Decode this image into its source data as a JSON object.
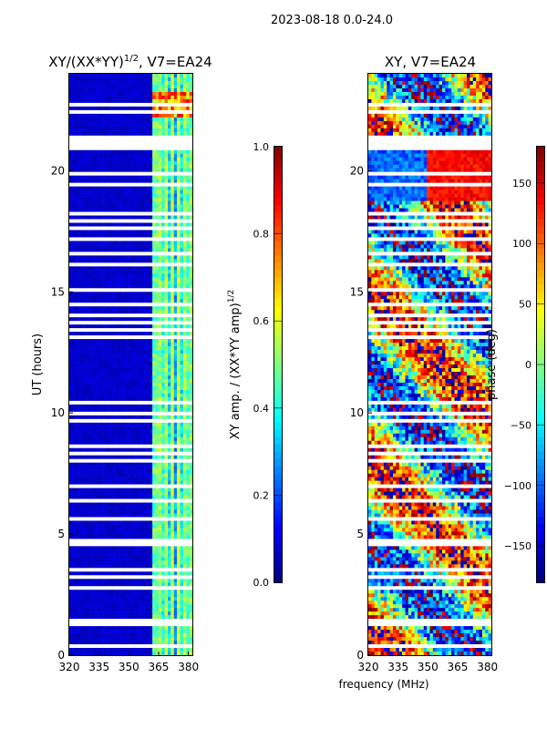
{
  "figure": {
    "suptitle": "2023-08-18 0.0-24.0",
    "xlabel": "frequency (MHz)"
  },
  "colors": {
    "jet": [
      "#00007f",
      "#0000ff",
      "#007fff",
      "#00ffff",
      "#7fff7f",
      "#ffff00",
      "#ff7f00",
      "#ff0000",
      "#7f0000"
    ],
    "gap": "#ffffff",
    "frame": "#000000"
  },
  "chart_data": [
    {
      "type": "heatmap",
      "panel": "amplitude",
      "title": "XY/(XX*YY)",
      "title_exp": "1/2",
      "title_suffix": ", V7=EA24",
      "ylabel": "UT (hours)",
      "xlim": [
        320,
        382
      ],
      "ylim": [
        0,
        24
      ],
      "xticks": [
        320,
        335,
        350,
        365,
        380
      ],
      "yticks": [
        0,
        5,
        10,
        15,
        20
      ],
      "colorbar": {
        "label": "XY amp. / (XX*YY amp)",
        "label_exp": "1/2",
        "range": [
          0.0,
          1.0
        ],
        "ticks": [
          "0.0",
          "0.2",
          "0.4",
          "0.6",
          "0.8",
          "1.0"
        ]
      },
      "description_values": {
        "background_value": 0.05,
        "active_band_MHz": [
          362,
          382
        ],
        "active_band_value_range": [
          0.2,
          0.65
        ],
        "peak_hours_range": [
          22.2,
          23.3
        ]
      }
    },
    {
      "type": "heatmap",
      "panel": "phase",
      "title": "XY, V7=EA24",
      "ylabel": "",
      "xlim": [
        320,
        382
      ],
      "ylim": [
        0,
        24
      ],
      "xticks": [
        320,
        335,
        350,
        365,
        380
      ],
      "yticks": [
        0,
        5,
        10,
        15,
        20
      ],
      "colorbar": {
        "label": "phase (deg)",
        "range": [
          -180,
          180
        ],
        "ticks": [
          "150",
          "100",
          "50",
          "0",
          "−50",
          "−100",
          "−150"
        ]
      },
      "description_values": {
        "value_range_deg": [
          -180,
          180
        ],
        "high_phase_block_hours": [
          18.8,
          20.9
        ],
        "high_phase_block_MHz": [
          350,
          382
        ]
      }
    }
  ],
  "gaps_hours": [
    [
      0.25,
      0.4
    ],
    [
      0.55,
      0.6
    ],
    [
      1.2,
      1.55
    ],
    [
      2.7,
      2.85
    ],
    [
      3.15,
      3.25
    ],
    [
      3.45,
      3.55
    ],
    [
      3.7,
      3.8
    ],
    [
      4.45,
      4.85
    ],
    [
      5.05,
      5.1
    ],
    [
      5.6,
      5.7
    ],
    [
      6.0,
      6.05
    ],
    [
      6.3,
      6.4
    ],
    [
      6.9,
      7.0
    ],
    [
      7.3,
      7.35
    ],
    [
      7.6,
      7.7
    ],
    [
      7.95,
      8.05
    ],
    [
      8.3,
      8.4
    ],
    [
      8.6,
      8.7
    ],
    [
      8.95,
      9.05
    ],
    [
      9.3,
      9.35
    ],
    [
      9.6,
      9.7
    ],
    [
      9.95,
      10.05
    ],
    [
      10.4,
      10.5
    ],
    [
      10.9,
      11.0
    ],
    [
      11.5,
      11.55
    ],
    [
      12.1,
      12.2
    ],
    [
      12.4,
      12.5
    ],
    [
      12.7,
      12.8
    ],
    [
      13.1,
      13.2
    ],
    [
      13.4,
      13.45
    ],
    [
      13.7,
      13.8
    ],
    [
      14.0,
      14.05
    ],
    [
      14.4,
      14.5
    ],
    [
      14.8,
      14.9
    ],
    [
      15.05,
      15.15
    ],
    [
      15.6,
      15.65
    ],
    [
      16.05,
      16.15
    ],
    [
      16.5,
      16.6
    ],
    [
      16.8,
      16.85
    ],
    [
      17.15,
      17.25
    ],
    [
      17.6,
      17.65
    ],
    [
      17.9,
      18.0
    ],
    [
      18.2,
      18.3
    ],
    [
      18.6,
      18.65
    ],
    [
      19.0,
      19.05
    ],
    [
      19.35,
      19.45
    ],
    [
      19.8,
      19.9
    ],
    [
      20.2,
      20.25
    ],
    [
      20.5,
      20.55
    ],
    [
      20.9,
      21.45
    ],
    [
      22.05,
      22.1
    ],
    [
      22.4,
      22.45
    ],
    [
      22.7,
      22.75
    ]
  ]
}
